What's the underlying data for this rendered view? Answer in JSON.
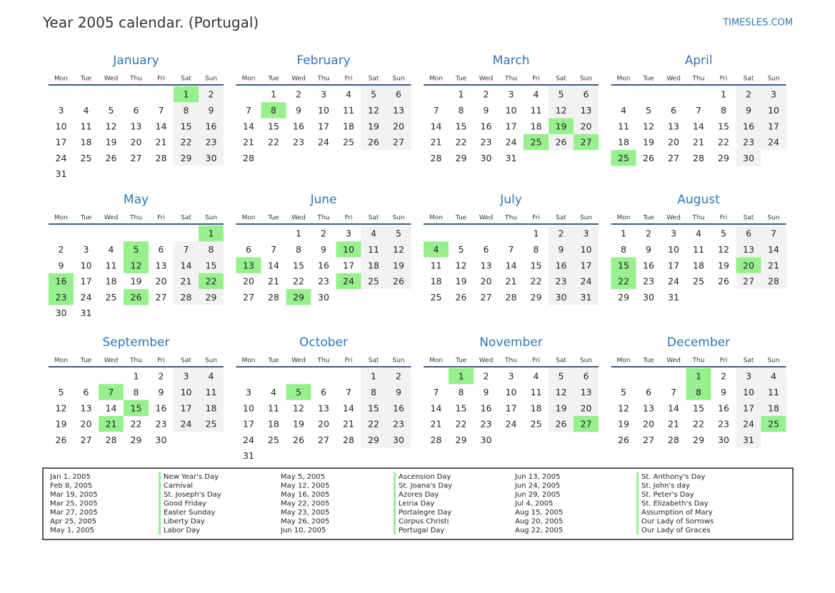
{
  "header": {
    "title": "Year 2005 calendar. (Portugal)",
    "site": "TIMESLES.COM"
  },
  "weekdays": [
    "Mon",
    "Tue",
    "Wed",
    "Thu",
    "Fri",
    "Sat",
    "Sun"
  ],
  "months": [
    {
      "name": "January",
      "holidays": [
        1
      ],
      "weeks": [
        [
          null,
          null,
          null,
          null,
          null,
          1,
          2
        ],
        [
          3,
          4,
          5,
          6,
          7,
          8,
          9
        ],
        [
          10,
          11,
          12,
          13,
          14,
          15,
          16
        ],
        [
          17,
          18,
          19,
          20,
          21,
          22,
          23
        ],
        [
          24,
          25,
          26,
          27,
          28,
          29,
          30
        ],
        [
          31
        ]
      ]
    },
    {
      "name": "February",
      "holidays": [
        8
      ],
      "weeks": [
        [
          null,
          1,
          2,
          3,
          4,
          5,
          6
        ],
        [
          7,
          8,
          9,
          10,
          11,
          12,
          13
        ],
        [
          14,
          15,
          16,
          17,
          18,
          19,
          20
        ],
        [
          21,
          22,
          23,
          24,
          25,
          26,
          27
        ],
        [
          28
        ]
      ]
    },
    {
      "name": "March",
      "holidays": [
        19,
        25,
        27
      ],
      "weeks": [
        [
          null,
          1,
          2,
          3,
          4,
          5,
          6
        ],
        [
          7,
          8,
          9,
          10,
          11,
          12,
          13
        ],
        [
          14,
          15,
          16,
          17,
          18,
          19,
          20
        ],
        [
          21,
          22,
          23,
          24,
          25,
          26,
          27
        ],
        [
          28,
          29,
          30,
          31
        ]
      ]
    },
    {
      "name": "April",
      "holidays": [
        25
      ],
      "weeks": [
        [
          null,
          null,
          null,
          null,
          1,
          2,
          3
        ],
        [
          4,
          5,
          6,
          7,
          8,
          9,
          10
        ],
        [
          11,
          12,
          13,
          14,
          15,
          16,
          17
        ],
        [
          18,
          19,
          20,
          21,
          22,
          23,
          24
        ],
        [
          25,
          26,
          27,
          28,
          29,
          30
        ]
      ]
    },
    {
      "name": "May",
      "holidays": [
        1,
        5,
        12,
        16,
        22,
        23,
        26
      ],
      "weeks": [
        [
          null,
          null,
          null,
          null,
          null,
          null,
          1
        ],
        [
          2,
          3,
          4,
          5,
          6,
          7,
          8
        ],
        [
          9,
          10,
          11,
          12,
          13,
          14,
          15
        ],
        [
          16,
          17,
          18,
          19,
          20,
          21,
          22
        ],
        [
          23,
          24,
          25,
          26,
          27,
          28,
          29
        ],
        [
          30,
          31
        ]
      ]
    },
    {
      "name": "June",
      "holidays": [
        10,
        13,
        24,
        29
      ],
      "weeks": [
        [
          null,
          null,
          1,
          2,
          3,
          4,
          5
        ],
        [
          6,
          7,
          8,
          9,
          10,
          11,
          12
        ],
        [
          13,
          14,
          15,
          16,
          17,
          18,
          19
        ],
        [
          20,
          21,
          22,
          23,
          24,
          25,
          26
        ],
        [
          27,
          28,
          29,
          30
        ]
      ]
    },
    {
      "name": "July",
      "holidays": [
        4
      ],
      "weeks": [
        [
          null,
          null,
          null,
          null,
          1,
          2,
          3
        ],
        [
          4,
          5,
          6,
          7,
          8,
          9,
          10
        ],
        [
          11,
          12,
          13,
          14,
          15,
          16,
          17
        ],
        [
          18,
          19,
          20,
          21,
          22,
          23,
          24
        ],
        [
          25,
          26,
          27,
          28,
          29,
          30,
          31
        ]
      ]
    },
    {
      "name": "August",
      "holidays": [
        15,
        20,
        22
      ],
      "weeks": [
        [
          1,
          2,
          3,
          4,
          5,
          6,
          7
        ],
        [
          8,
          9,
          10,
          11,
          12,
          13,
          14
        ],
        [
          15,
          16,
          17,
          18,
          19,
          20,
          21
        ],
        [
          22,
          23,
          24,
          25,
          26,
          27,
          28
        ],
        [
          29,
          30,
          31
        ]
      ]
    },
    {
      "name": "September",
      "holidays": [
        7,
        15,
        21
      ],
      "weeks": [
        [
          null,
          null,
          null,
          1,
          2,
          3,
          4
        ],
        [
          5,
          6,
          7,
          8,
          9,
          10,
          11
        ],
        [
          12,
          13,
          14,
          15,
          16,
          17,
          18
        ],
        [
          19,
          20,
          21,
          22,
          23,
          24,
          25
        ],
        [
          26,
          27,
          28,
          29,
          30
        ]
      ]
    },
    {
      "name": "October",
      "holidays": [
        5
      ],
      "weeks": [
        [
          null,
          null,
          null,
          null,
          null,
          1,
          2
        ],
        [
          3,
          4,
          5,
          6,
          7,
          8,
          9
        ],
        [
          10,
          11,
          12,
          13,
          14,
          15,
          16
        ],
        [
          17,
          18,
          19,
          20,
          21,
          22,
          23
        ],
        [
          24,
          25,
          26,
          27,
          28,
          29,
          30
        ],
        [
          31
        ]
      ]
    },
    {
      "name": "November",
      "holidays": [
        1,
        27
      ],
      "weeks": [
        [
          null,
          1,
          2,
          3,
          4,
          5,
          6
        ],
        [
          7,
          8,
          9,
          10,
          11,
          12,
          13
        ],
        [
          14,
          15,
          16,
          17,
          18,
          19,
          20
        ],
        [
          21,
          22,
          23,
          24,
          25,
          26,
          27
        ],
        [
          28,
          29,
          30
        ]
      ]
    },
    {
      "name": "December",
      "holidays": [
        1,
        8,
        25
      ],
      "weeks": [
        [
          null,
          null,
          null,
          1,
          2,
          3,
          4
        ],
        [
          5,
          6,
          7,
          8,
          9,
          10,
          11
        ],
        [
          12,
          13,
          14,
          15,
          16,
          17,
          18
        ],
        [
          19,
          20,
          21,
          22,
          23,
          24,
          25
        ],
        [
          26,
          27,
          28,
          29,
          30,
          31
        ]
      ]
    }
  ],
  "holidays": [
    {
      "date": "Jan 1, 2005",
      "name": "New Year's Day"
    },
    {
      "date": "Feb 8, 2005",
      "name": "Carnival"
    },
    {
      "date": "Mar 19, 2005",
      "name": "St. Joseph's Day"
    },
    {
      "date": "Mar 25, 2005",
      "name": "Good Friday"
    },
    {
      "date": "Mar 27, 2005",
      "name": "Easter Sunday"
    },
    {
      "date": "Apr 25, 2005",
      "name": "Liberty Day"
    },
    {
      "date": "May 1, 2005",
      "name": "Labor Day"
    },
    {
      "date": "May 5, 2005",
      "name": "Ascension Day"
    },
    {
      "date": "May 12, 2005",
      "name": "St. Joana's Day"
    },
    {
      "date": "May 16, 2005",
      "name": "Azores Day"
    },
    {
      "date": "May 22, 2005",
      "name": "Leiria Day"
    },
    {
      "date": "May 23, 2005",
      "name": "Portalegre Day"
    },
    {
      "date": "May 26, 2005",
      "name": "Corpus Christi"
    },
    {
      "date": "Jun 10, 2005",
      "name": "Portugal Day"
    },
    {
      "date": "Jun 13, 2005",
      "name": "St. Anthony's Day"
    },
    {
      "date": "Jun 24, 2005",
      "name": "St. John's day"
    },
    {
      "date": "Jun 29, 2005",
      "name": "St. Peter's Day"
    },
    {
      "date": "Jul 4, 2005",
      "name": "St. Elizabeth's Day"
    },
    {
      "date": "Aug 15, 2005",
      "name": "Assumption of Mary"
    },
    {
      "date": "Aug 20, 2005",
      "name": "Our Lady of Sorrows"
    },
    {
      "date": "Aug 22, 2005",
      "name": "Our Lady of Graces"
    }
  ]
}
